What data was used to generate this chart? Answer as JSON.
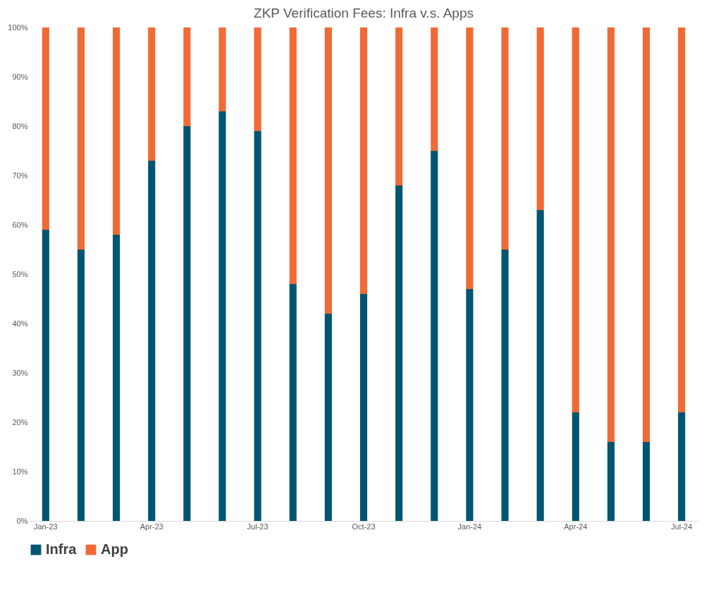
{
  "chart_data": {
    "type": "bar",
    "title": "ZKP Verification Fees: Infra v.s. Apps",
    "stacked": true,
    "categories": [
      "Jan-23",
      null,
      null,
      "Apr-23",
      null,
      null,
      "Jul-23",
      null,
      null,
      "Oct-23",
      null,
      null,
      "Jan-24",
      null,
      null,
      "Apr-24",
      null,
      null,
      "Jul-24"
    ],
    "series": [
      {
        "name": "Infra",
        "color": "#005670",
        "values": [
          59,
          55,
          58,
          73,
          80,
          83,
          79,
          48,
          42,
          46,
          68,
          75,
          47,
          55,
          63,
          22,
          16,
          16,
          22
        ]
      },
      {
        "name": "App",
        "color": "#f06a35",
        "values": [
          41,
          45,
          42,
          27,
          20,
          17,
          21,
          52,
          58,
          54,
          32,
          25,
          53,
          45,
          37,
          78,
          84,
          84,
          78
        ]
      }
    ],
    "ylim": [
      0,
      100
    ],
    "yticks": [
      {
        "value": 0,
        "label": "0%"
      },
      {
        "value": 10,
        "label": "10%"
      },
      {
        "value": 20,
        "label": "20%"
      },
      {
        "value": 30,
        "label": "30%"
      },
      {
        "value": 40,
        "label": "40%"
      },
      {
        "value": 50,
        "label": "50%"
      },
      {
        "value": 60,
        "label": "60%"
      },
      {
        "value": 70,
        "label": "70%"
      },
      {
        "value": 80,
        "label": "80%"
      },
      {
        "value": 90,
        "label": "90%"
      },
      {
        "value": 100,
        "label": "100%"
      }
    ],
    "grid": false,
    "legend": "bottom"
  }
}
